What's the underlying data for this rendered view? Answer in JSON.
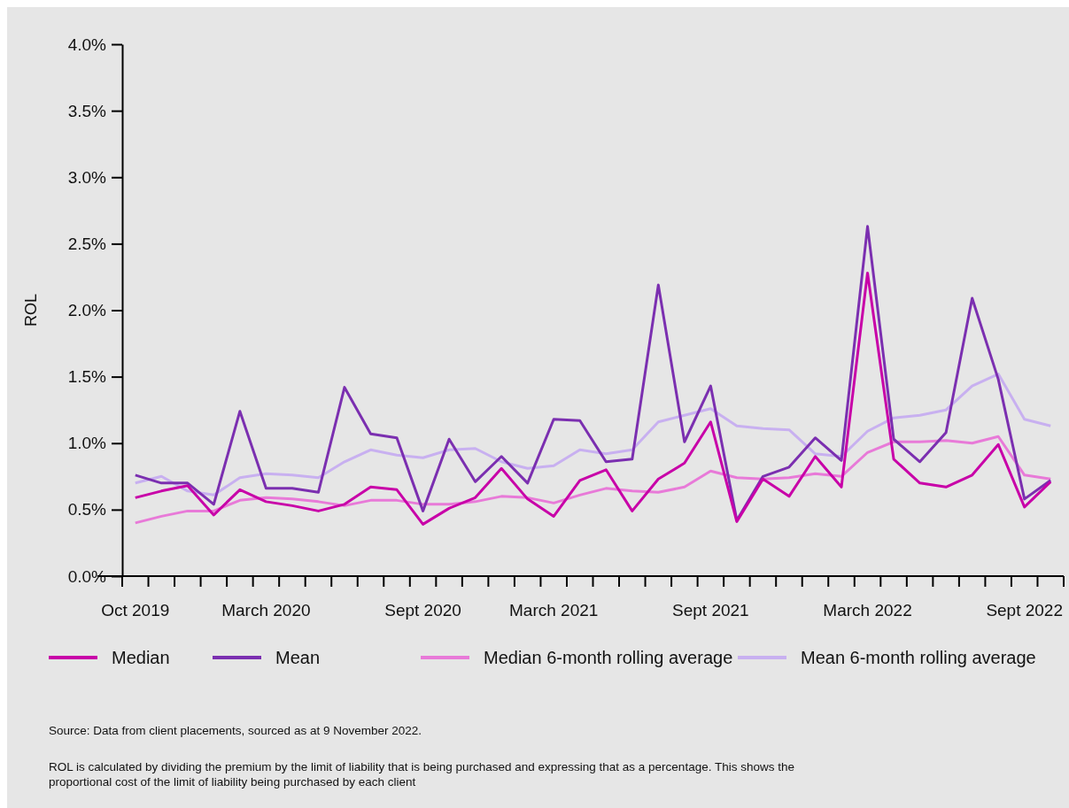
{
  "chart_data": {
    "type": "line",
    "ylabel": "ROL",
    "categories": [
      "Oct 2019",
      null,
      null,
      null,
      null,
      "March 2020",
      null,
      null,
      null,
      null,
      null,
      "Sept 2020",
      null,
      null,
      null,
      null,
      "March 2021",
      null,
      null,
      null,
      null,
      null,
      "Sept 2021",
      null,
      null,
      null,
      null,
      null,
      "March 2022",
      null,
      null,
      null,
      null,
      null,
      "Sept 2022",
      null
    ],
    "ylim": [
      0,
      4
    ],
    "yticks": [
      {
        "value": 0,
        "label": "0.0%"
      },
      {
        "value": 0.5,
        "label": "0.5%"
      },
      {
        "value": 1,
        "label": "1.0%"
      },
      {
        "value": 1.5,
        "label": "1.5%"
      },
      {
        "value": 2,
        "label": "2.0%"
      },
      {
        "value": 2.5,
        "label": "2.5%"
      },
      {
        "value": 3,
        "label": "3.0%"
      },
      {
        "value": 3.5,
        "label": "3.5%"
      },
      {
        "value": 4,
        "label": "4.0%"
      }
    ],
    "grid": false,
    "legend": "bottom",
    "marker": "none",
    "line_style": "solid",
    "series": [
      {
        "name": "Median",
        "color": "#c800a8",
        "values": [
          0.59,
          0.64,
          0.68,
          0.46,
          0.65,
          0.56,
          0.53,
          0.49,
          0.54,
          0.67,
          0.65,
          0.39,
          0.51,
          0.59,
          0.81,
          0.58,
          0.45,
          0.72,
          0.8,
          0.49,
          0.73,
          0.85,
          1.16,
          0.41,
          0.73,
          0.6,
          0.9,
          0.67,
          2.28,
          0.88,
          0.7,
          0.67,
          0.76,
          0.99,
          0.52,
          0.71
        ]
      },
      {
        "name": "Mean",
        "color": "#7b2fb0",
        "values": [
          0.76,
          0.7,
          0.7,
          0.54,
          1.24,
          0.66,
          0.66,
          0.63,
          1.42,
          1.07,
          1.04,
          0.49,
          1.03,
          0.71,
          0.9,
          0.7,
          1.18,
          1.17,
          0.86,
          0.88,
          2.19,
          1.01,
          1.43,
          0.42,
          0.75,
          0.82,
          1.04,
          0.87,
          2.63,
          1.03,
          0.86,
          1.08,
          2.09,
          1.48,
          0.58,
          0.72
        ]
      },
      {
        "name": "Median 6-month rolling average",
        "color": "#e87ad8",
        "values": [
          0.4,
          0.45,
          0.49,
          0.49,
          0.57,
          0.59,
          0.58,
          0.56,
          0.53,
          0.57,
          0.57,
          0.54,
          0.54,
          0.56,
          0.6,
          0.59,
          0.55,
          0.61,
          0.66,
          0.64,
          0.63,
          0.67,
          0.79,
          0.74,
          0.73,
          0.74,
          0.77,
          0.75,
          0.93,
          1.01,
          1.01,
          1.02,
          1.0,
          1.05,
          0.76,
          0.73
        ]
      },
      {
        "name": "Mean 6-month rolling average",
        "color": "#c8b0f0",
        "values": [
          0.7,
          0.75,
          0.64,
          0.61,
          0.74,
          0.77,
          0.76,
          0.74,
          0.86,
          0.95,
          0.91,
          0.89,
          0.95,
          0.96,
          0.86,
          0.81,
          0.83,
          0.95,
          0.92,
          0.95,
          1.16,
          1.21,
          1.26,
          1.13,
          1.11,
          1.1,
          0.92,
          0.9,
          1.09,
          1.19,
          1.21,
          1.25,
          1.43,
          1.52,
          1.18,
          1.13
        ]
      }
    ],
    "annotations": [
      "Source:  Data from client placements, sourced as at 9 November 2022.",
      "ROL is calculated by dividing the premium by the limit of liability that is being purchased and expressing that as a percentage.  This shows the proportional cost of the limit of liability being purchased by each client"
    ]
  }
}
